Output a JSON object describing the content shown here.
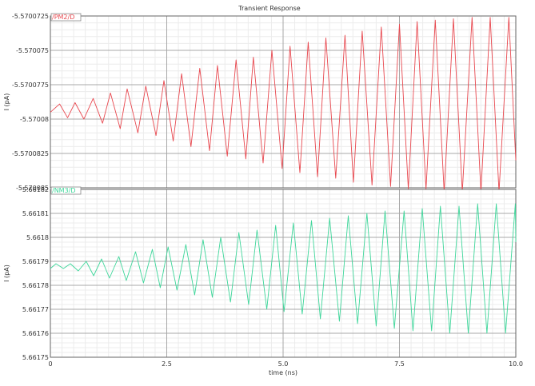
{
  "title": "Transient Response",
  "chart_data": [
    {
      "type": "line",
      "legend": "/PM2/D",
      "color": "#e8484f",
      "ylabel": "I (pA)",
      "yticks": [
        "-5.5700725",
        "-5.570075",
        "-5.5700775",
        "-5.57008",
        "-5.5700825",
        "-5.570085"
      ],
      "ylim": [
        -5.570085,
        -5.5700725
      ],
      "xlim": [
        0,
        10
      ],
      "grid": true,
      "series": [
        {
          "x": [
            0,
            0.2,
            0.37,
            0.53,
            0.72,
            0.92,
            1.12,
            1.29,
            1.5,
            1.65,
            1.88,
            2.05,
            2.27,
            2.44,
            2.64,
            2.82,
            3.02,
            3.21,
            3.42,
            3.59,
            3.8,
            3.99,
            4.2,
            4.36,
            4.57,
            4.76,
            4.98,
            5.15,
            5.36,
            5.54,
            5.74,
            5.92,
            6.13,
            6.33,
            6.51,
            6.7,
            6.91,
            7.11,
            7.31,
            7.5,
            7.69,
            7.88,
            8.07,
            8.27,
            8.46,
            8.66,
            8.85,
            9.06,
            9.25,
            9.45,
            9.64,
            9.85,
            10.0
          ],
          "y": [
            -5.5700795,
            -5.5700789,
            -5.5700799,
            -5.5700788,
            -5.57008,
            -5.5700785,
            -5.5700803,
            -5.5700781,
            -5.5700807,
            -5.5700778,
            -5.570081,
            -5.5700776,
            -5.5700812,
            -5.5700772,
            -5.5700816,
            -5.5700767,
            -5.570082,
            -5.5700763,
            -5.5700823,
            -5.5700761,
            -5.5700827,
            -5.5700757,
            -5.5700829,
            -5.5700755,
            -5.5700832,
            -5.570075,
            -5.5700836,
            -5.5700747,
            -5.5700839,
            -5.5700744,
            -5.5700842,
            -5.5700741,
            -5.5700843,
            -5.5700739,
            -5.5700846,
            -5.5700736,
            -5.5700848,
            -5.5700733,
            -5.5700849,
            -5.5700731,
            -5.5700851,
            -5.5700729,
            -5.5700851,
            -5.5700728,
            -5.5700853,
            -5.5700727,
            -5.5700853,
            -5.5700726,
            -5.5700853,
            -5.5700726,
            -5.5700853,
            -5.5700726,
            -5.570083
          ]
        }
      ]
    },
    {
      "type": "line",
      "legend": "/NM3/D",
      "color": "#3ed69a",
      "ylabel": "I (pA)",
      "xlabel": "time (ns)",
      "yticks": [
        "5.66182",
        "5.66181",
        "5.6618",
        "5.66179",
        "5.66178",
        "5.66177",
        "5.66176",
        "5.66175"
      ],
      "ylim": [
        5.66175,
        5.66182
      ],
      "xlim": [
        0,
        10
      ],
      "xticks": [
        "0",
        "2.5",
        "5.0",
        "7.5",
        "10.0"
      ],
      "grid": true,
      "series": [
        {
          "x": [
            0,
            0.12,
            0.28,
            0.43,
            0.6,
            0.77,
            0.93,
            1.1,
            1.27,
            1.47,
            1.63,
            1.83,
            2.0,
            2.19,
            2.36,
            2.53,
            2.72,
            2.91,
            3.1,
            3.28,
            3.48,
            3.66,
            3.87,
            4.05,
            4.26,
            4.44,
            4.65,
            4.84,
            5.02,
            5.22,
            5.41,
            5.61,
            5.8,
            6.0,
            6.21,
            6.4,
            6.6,
            6.8,
            7.0,
            7.19,
            7.39,
            7.6,
            7.79,
            7.99,
            8.19,
            8.38,
            8.58,
            8.78,
            8.98,
            9.18,
            9.38,
            9.58,
            9.78,
            9.99,
            10.0
          ],
          "y": [
            5.661787,
            5.661789,
            5.661787,
            5.661789,
            5.661786,
            5.66179,
            5.661784,
            5.661791,
            5.661783,
            5.661792,
            5.661782,
            5.661794,
            5.661781,
            5.661795,
            5.661779,
            5.661796,
            5.661778,
            5.661797,
            5.661776,
            5.661799,
            5.661775,
            5.6618,
            5.661773,
            5.661802,
            5.661772,
            5.661803,
            5.66177,
            5.661805,
            5.661769,
            5.661806,
            5.661768,
            5.661807,
            5.661766,
            5.661808,
            5.661765,
            5.661809,
            5.661764,
            5.66181,
            5.661763,
            5.661811,
            5.661762,
            5.661811,
            5.661761,
            5.661812,
            5.661761,
            5.661813,
            5.66176,
            5.661813,
            5.66176,
            5.661814,
            5.66176,
            5.661814,
            5.66176,
            5.661814,
            5.661798
          ]
        }
      ]
    }
  ]
}
